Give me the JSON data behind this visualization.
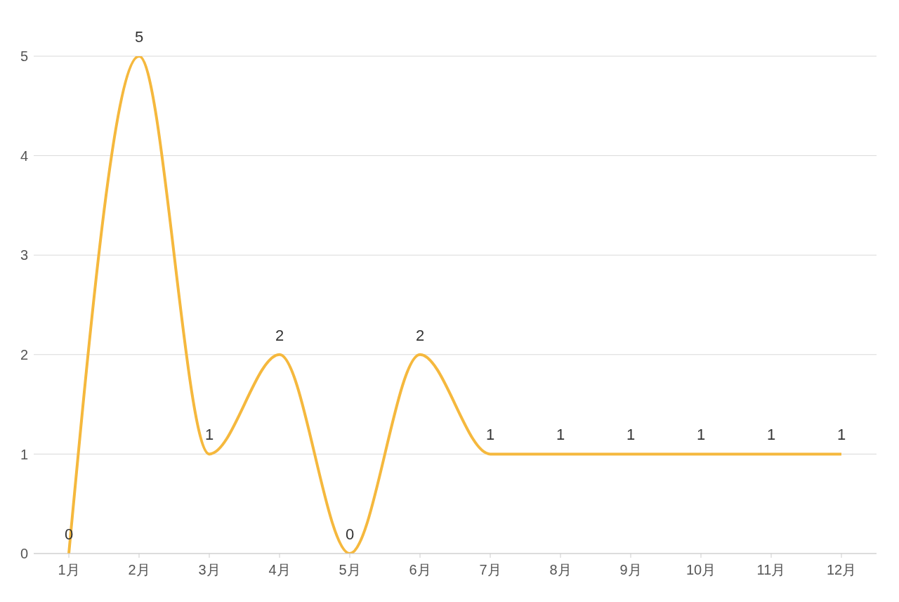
{
  "chart_data": {
    "type": "line",
    "categories": [
      "1月",
      "2月",
      "3月",
      "4月",
      "5月",
      "6月",
      "7月",
      "8月",
      "9月",
      "10月",
      "11月",
      "12月"
    ],
    "values": [
      0,
      5,
      1,
      2,
      0,
      2,
      1,
      1,
      1,
      1,
      1,
      1
    ],
    "color": "#f5b83d",
    "ylim": [
      0,
      5
    ],
    "yticks": [
      0,
      1,
      2,
      3,
      4,
      5
    ],
    "grid": "y",
    "data_labels": true
  }
}
